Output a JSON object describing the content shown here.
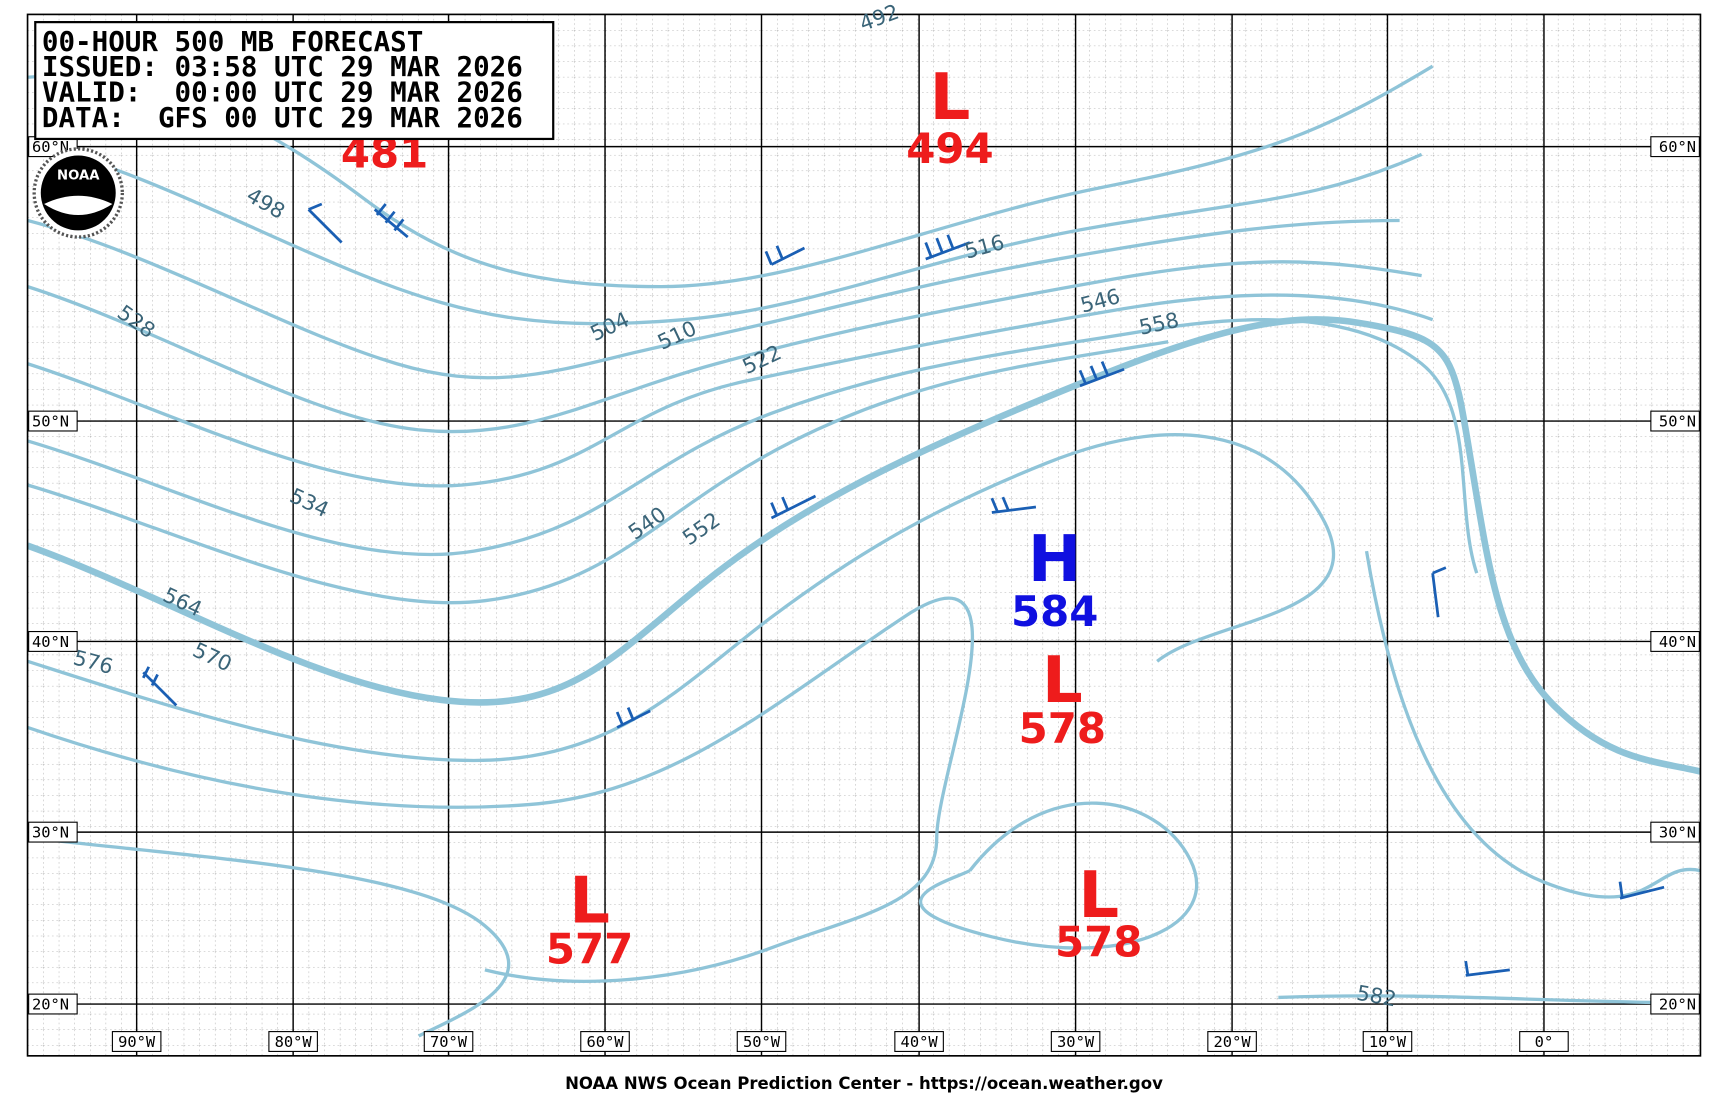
{
  "header": {
    "lines": [
      "00-HOUR 500 MB FORECAST",
      "ISSUED: 03:58 UTC 29 MAR 2026",
      "VALID:  00:00 UTC 29 MAR 2026",
      "DATA:  GFS 00 UTC 29 MAR 2026"
    ]
  },
  "logo": "NOAA",
  "lat_labels": [
    "60°N",
    "50°N",
    "40°N",
    "30°N",
    "20°N"
  ],
  "lon_labels": [
    "90°W",
    "80°W",
    "70°W",
    "60°W",
    "50°W",
    "40°W",
    "30°W",
    "20°W",
    "10°W",
    "0°"
  ],
  "contour_labels": [
    492,
    498,
    528,
    534,
    564,
    576,
    570,
    504,
    510,
    522,
    540,
    552,
    516,
    546,
    558,
    582
  ],
  "centers": [
    {
      "symbol": "L",
      "value": 494
    },
    {
      "value": 481
    },
    {
      "symbol": "H",
      "value": 584
    },
    {
      "symbol": "L",
      "value": 578
    },
    {
      "symbol": "L",
      "value": 577
    },
    {
      "symbol": "L",
      "value": 578
    }
  ],
  "footer": "NOAA NWS Ocean Prediction Center - https://ocean.weather.gov"
}
